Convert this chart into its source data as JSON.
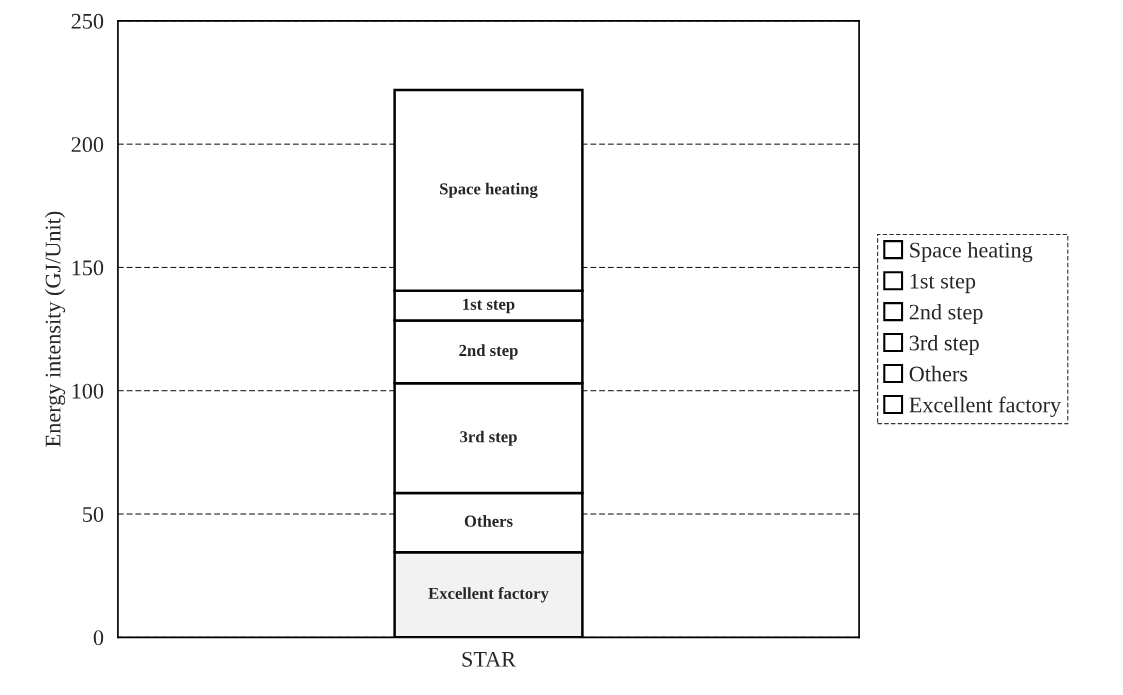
{
  "chart_data": {
    "type": "bar",
    "stacked": true,
    "ylabel": "Energy intensity (GJ/Unit)",
    "categories": [
      "STAR"
    ],
    "series": [
      {
        "name": "Excellent factory",
        "color": "#f2f2f2",
        "values": [
          34.5
        ]
      },
      {
        "name": "Others",
        "color": "#ffffff",
        "values": [
          24
        ]
      },
      {
        "name": "3rd step",
        "color": "#ffffff",
        "values": [
          44.5
        ]
      },
      {
        "name": "2nd step",
        "color": "#ffffff",
        "values": [
          25.5
        ]
      },
      {
        "name": "1st step",
        "color": "#ffffff",
        "values": [
          12
        ]
      },
      {
        "name": "Space heating",
        "color": "#ffffff",
        "values": [
          81.5
        ]
      }
    ],
    "ylim": [
      0,
      250
    ],
    "yticks": [
      0,
      50,
      100,
      150,
      200,
      250
    ],
    "grid": "y",
    "legend": "right"
  }
}
